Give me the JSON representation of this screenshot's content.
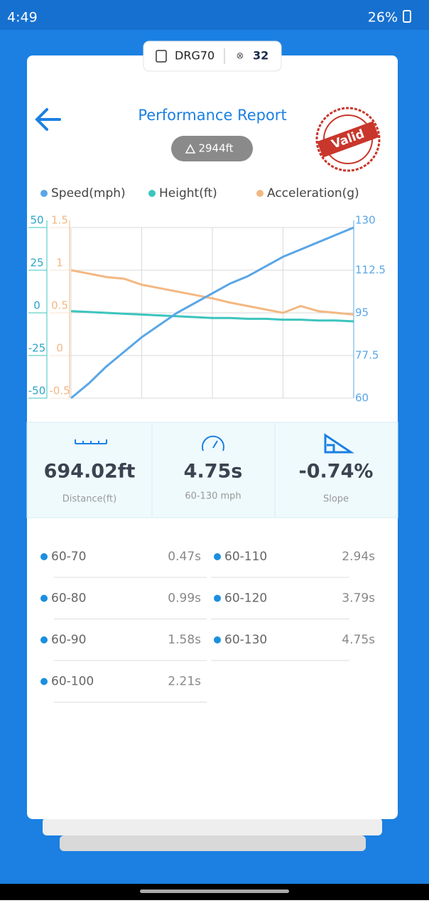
{
  "status_bar": {
    "time": "4:49",
    "battery": "26%"
  },
  "device": {
    "name": "DRG70",
    "satellites": 32
  },
  "header": {
    "title": "Performance Report",
    "altitude": "2944ft",
    "stamp": "Valid"
  },
  "chart_data": {
    "type": "line",
    "categories": [
      null,
      null,
      null,
      null,
      null,
      null,
      null,
      null,
      null,
      null,
      null,
      null,
      null,
      null,
      null,
      null,
      null
    ],
    "series": [
      {
        "name": "Speed(mph)",
        "color": "#5aa6e6",
        "axis": "y2",
        "values": [
          60,
          66,
          73,
          79,
          85,
          90,
          95,
          99,
          103,
          107,
          110,
          114,
          118,
          121,
          124,
          127,
          130
        ]
      },
      {
        "name": "Height(ft)",
        "color": "#3cc4be",
        "values": [
          1,
          0.5,
          0,
          -0.5,
          -1,
          -1.5,
          -2,
          -2.5,
          -3,
          -3,
          -3.5,
          -3.5,
          -4,
          -4,
          -4.5,
          -4.5,
          -5
        ]
      },
      {
        "name": "Acceleration(g)",
        "color": "#f3b883",
        "axis": "y3",
        "values": [
          1,
          0.96,
          0.92,
          0.9,
          0.83,
          0.79,
          0.75,
          0.71,
          0.67,
          0.62,
          0.58,
          0.54,
          0.5,
          0.58,
          0.52,
          0.5,
          0.48
        ]
      }
    ],
    "ylim": [
      -50,
      50
    ],
    "yticks": [
      -50,
      -25,
      0,
      25,
      50
    ],
    "y2lim": [
      60,
      130
    ],
    "y2ticks": [
      60,
      77.5,
      95,
      112.5,
      130
    ],
    "y3lim": [
      -0.5,
      1.5
    ],
    "y3ticks": [
      -0.5,
      0,
      0.5,
      1,
      1.5
    ],
    "grid": true
  },
  "stats": [
    {
      "value": "694.02ft",
      "label": "Distance(ft)"
    },
    {
      "value": "4.75s",
      "label": "60-130 mph"
    },
    {
      "value": "-0.74%",
      "label": "Slope"
    }
  ],
  "splits": [
    {
      "label": "60-70",
      "value": "0.47s"
    },
    {
      "label": "60-110",
      "value": "2.94s"
    },
    {
      "label": "60-80",
      "value": "0.99s"
    },
    {
      "label": "60-120",
      "value": "3.79s"
    },
    {
      "label": "60-90",
      "value": "1.58s"
    },
    {
      "label": "60-130",
      "value": "4.75s"
    },
    {
      "label": "60-100",
      "value": "2.21s"
    }
  ]
}
